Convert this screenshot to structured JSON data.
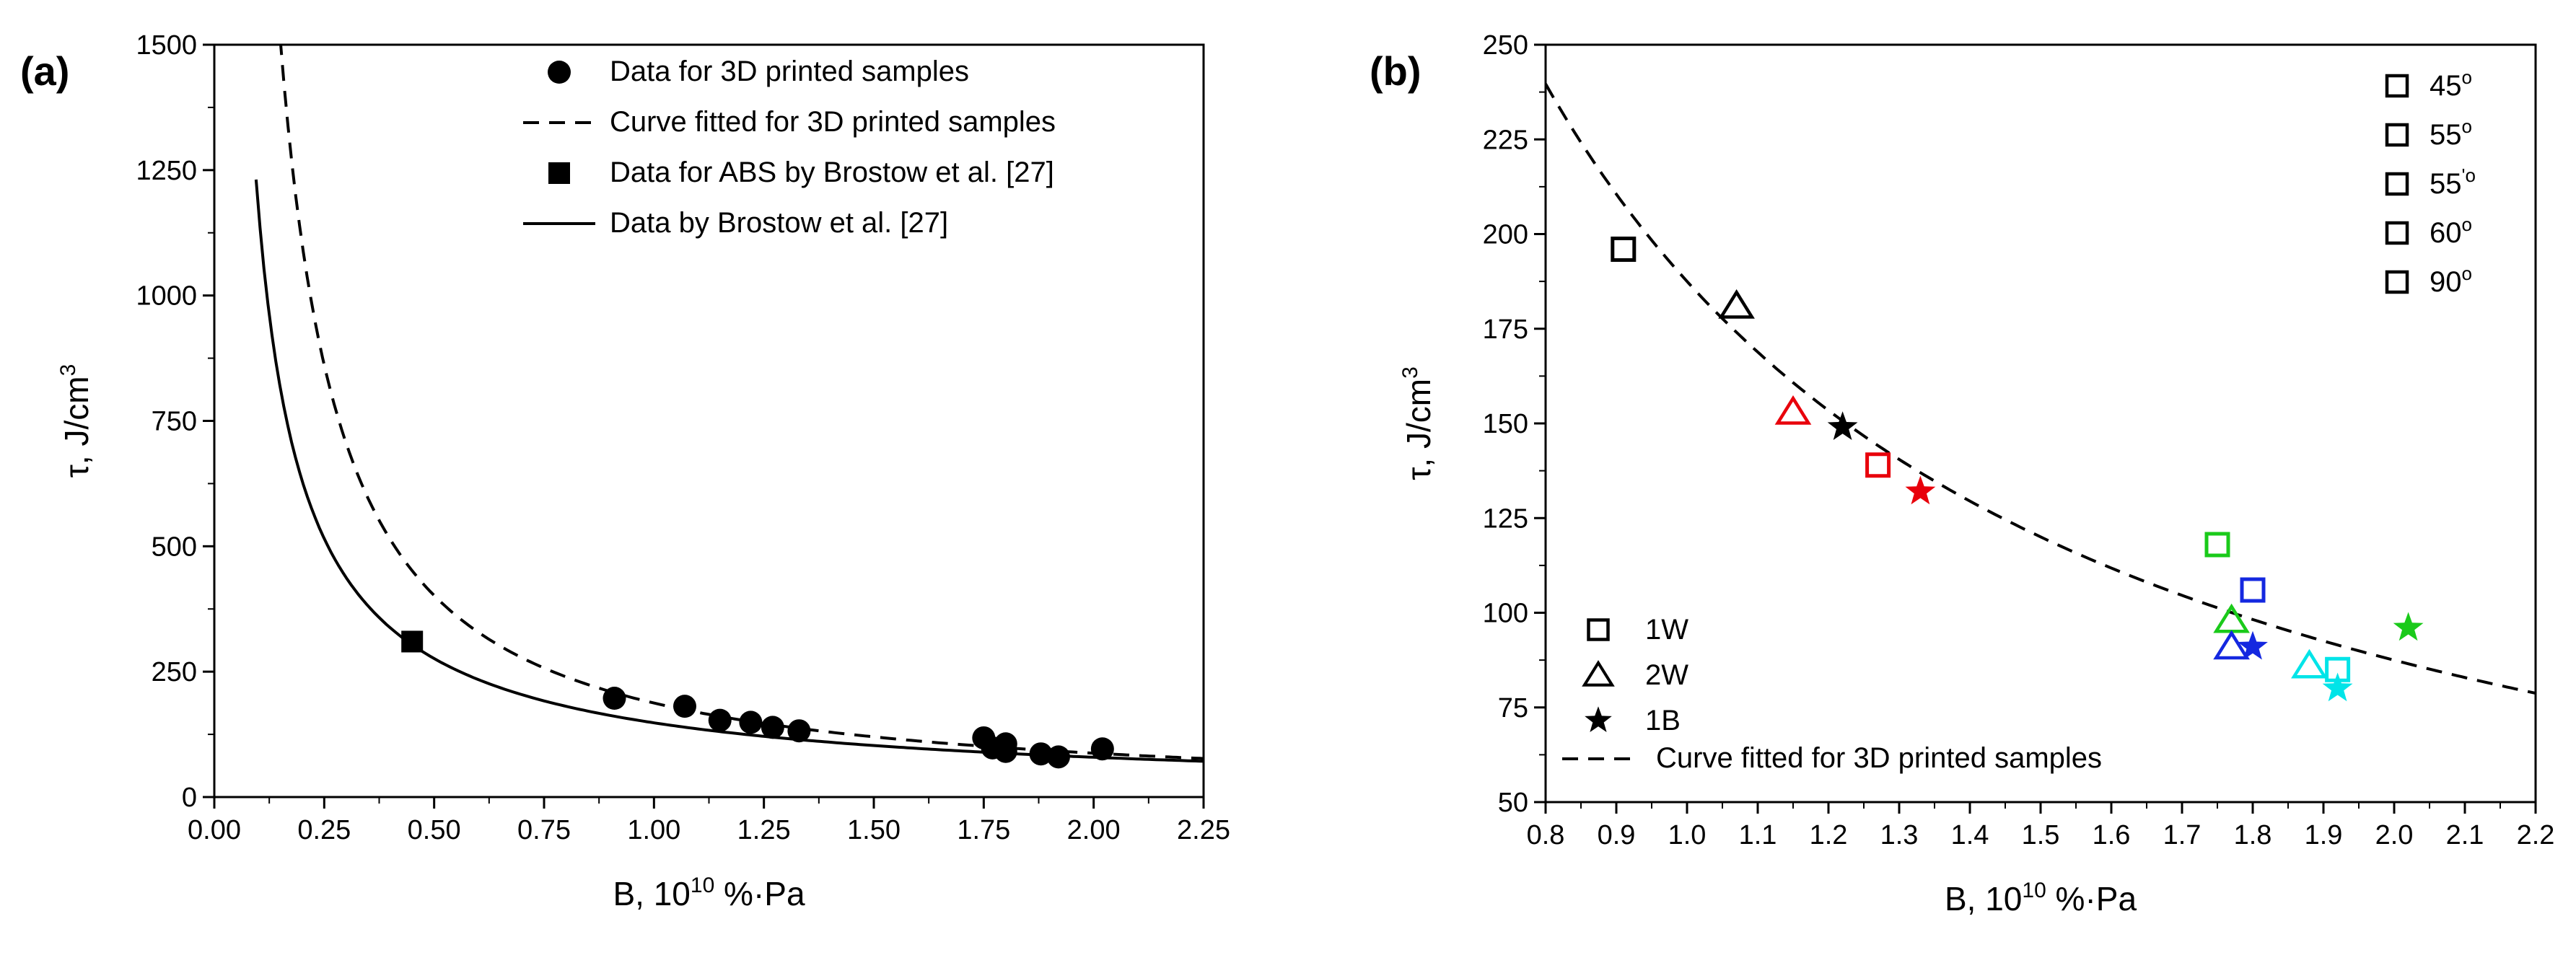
{
  "chart_data": [
    {
      "type": "scatter",
      "panel_label": "(a)",
      "xlabel": "B, 10^10 %·Pa",
      "xlabel_parts": {
        "base": "B, 10",
        "sup": "10",
        "rest": " %·Pa"
      },
      "ylabel": "τ, J/cm3",
      "ylabel_parts": {
        "base": "τ, J/cm",
        "sup": "3"
      },
      "xlim": [
        0,
        2.25
      ],
      "ylim": [
        0,
        1500
      ],
      "x_ticks": [
        "0.00",
        "0.25",
        "0.50",
        "0.75",
        "1.00",
        "1.25",
        "1.50",
        "1.75",
        "2.00",
        "2.25"
      ],
      "y_ticks": [
        "0",
        "250",
        "500",
        "750",
        "1000",
        "1250",
        "1500"
      ],
      "legend": [
        {
          "label": "Data for 3D printed samples",
          "marker": "circle"
        },
        {
          "label": "Curve fitted for 3D printed samples",
          "marker": "dashed-line"
        },
        {
          "label": "Data for ABS by Brostow et al. [27]",
          "marker": "square"
        },
        {
          "label": "Data by Brostow et al. [27]",
          "marker": "solid-line"
        }
      ],
      "series": [
        {
          "name": "Data for 3D printed samples",
          "kind": "points",
          "marker": "circle",
          "x": [
            0.91,
            1.07,
            1.15,
            1.22,
            1.27,
            1.33,
            1.75,
            1.77,
            1.8,
            1.8,
            1.88,
            1.92,
            2.02
          ],
          "y": [
            197,
            181,
            153,
            149,
            139,
            132,
            118,
            98,
            106,
            91,
            86,
            80,
            96
          ]
        },
        {
          "name": "Data for ABS by Brostow et al. [27]",
          "kind": "points",
          "marker": "square",
          "x": [
            0.45
          ],
          "y": [
            310
          ]
        },
        {
          "name": "Curve fitted for 3D printed samples",
          "kind": "curve",
          "style": "dashed",
          "model": "tau = a / B^n",
          "a": 187.5,
          "n": 1.1,
          "x_range": [
            0.15,
            2.25
          ]
        },
        {
          "name": "Data by Brostow et al. [27]",
          "kind": "curve",
          "style": "solid",
          "model": "tau = a / B^n",
          "a": 148,
          "n": 0.9,
          "x_range": [
            0.095,
            2.25
          ]
        }
      ]
    },
    {
      "type": "scatter",
      "panel_label": "(b)",
      "xlabel": "B, 10^10 %·Pa",
      "xlabel_parts": {
        "base": "B, 10",
        "sup": "10",
        "rest": " %·Pa"
      },
      "ylabel": "τ, J/cm3",
      "ylabel_parts": {
        "base": "τ, J/cm",
        "sup": "3"
      },
      "xlim": [
        0.8,
        2.2
      ],
      "ylim": [
        50,
        250
      ],
      "x_ticks": [
        "0.8",
        "0.9",
        "1.0",
        "1.1",
        "1.2",
        "1.3",
        "1.4",
        "1.5",
        "1.6",
        "1.7",
        "1.8",
        "1.9",
        "2.0",
        "2.1",
        "2.2"
      ],
      "y_ticks": [
        "50",
        "75",
        "100",
        "125",
        "150",
        "175",
        "200",
        "225",
        "250"
      ],
      "legend_angles": [
        {
          "label": "45",
          "sup": "o",
          "color": "#000000"
        },
        {
          "label": "55",
          "sup": "o",
          "color": "#e8000b"
        },
        {
          "label": "55",
          "sup": "'o",
          "color": "#1aca1a"
        },
        {
          "label": "60",
          "sup": "o",
          "color": "#1428e0"
        },
        {
          "label": "90",
          "sup": "o",
          "color": "#00e4e8"
        }
      ],
      "legend_types": [
        {
          "label": "1W",
          "marker": "square"
        },
        {
          "label": "2W",
          "marker": "triangle"
        },
        {
          "label": "1B",
          "marker": "star"
        }
      ],
      "legend_curve": {
        "label": "Curve fitted for 3D printed samples",
        "marker": "dashed-line"
      },
      "points": [
        {
          "x": 0.91,
          "y": 196,
          "marker": "square",
          "color": "#000000"
        },
        {
          "x": 1.07,
          "y": 181,
          "marker": "triangle",
          "color": "#000000"
        },
        {
          "x": 1.22,
          "y": 149,
          "marker": "star",
          "color": "#000000"
        },
        {
          "x": 1.27,
          "y": 139,
          "marker": "square",
          "color": "#e8000b"
        },
        {
          "x": 1.15,
          "y": 153,
          "marker": "triangle",
          "color": "#e8000b"
        },
        {
          "x": 1.33,
          "y": 132,
          "marker": "star",
          "color": "#e8000b"
        },
        {
          "x": 1.75,
          "y": 118,
          "marker": "square",
          "color": "#1aca1a"
        },
        {
          "x": 1.77,
          "y": 98,
          "marker": "triangle",
          "color": "#1aca1a"
        },
        {
          "x": 2.02,
          "y": 96,
          "marker": "star",
          "color": "#1aca1a"
        },
        {
          "x": 1.8,
          "y": 106,
          "marker": "square",
          "color": "#1428e0"
        },
        {
          "x": 1.77,
          "y": 91,
          "marker": "triangle",
          "color": "#1428e0"
        },
        {
          "x": 1.8,
          "y": 91,
          "marker": "star",
          "color": "#1428e0"
        },
        {
          "x": 1.92,
          "y": 85,
          "marker": "square",
          "color": "#00e4e8"
        },
        {
          "x": 1.88,
          "y": 86,
          "marker": "triangle",
          "color": "#00e4e8"
        },
        {
          "x": 1.92,
          "y": 80,
          "marker": "star",
          "color": "#00e4e8"
        }
      ],
      "curve": {
        "name": "Curve fitted for 3D printed samples",
        "style": "dashed",
        "model": "tau = a / B^n",
        "a": 187.5,
        "n": 1.1,
        "x_range": [
          0.8,
          2.2
        ]
      }
    }
  ]
}
